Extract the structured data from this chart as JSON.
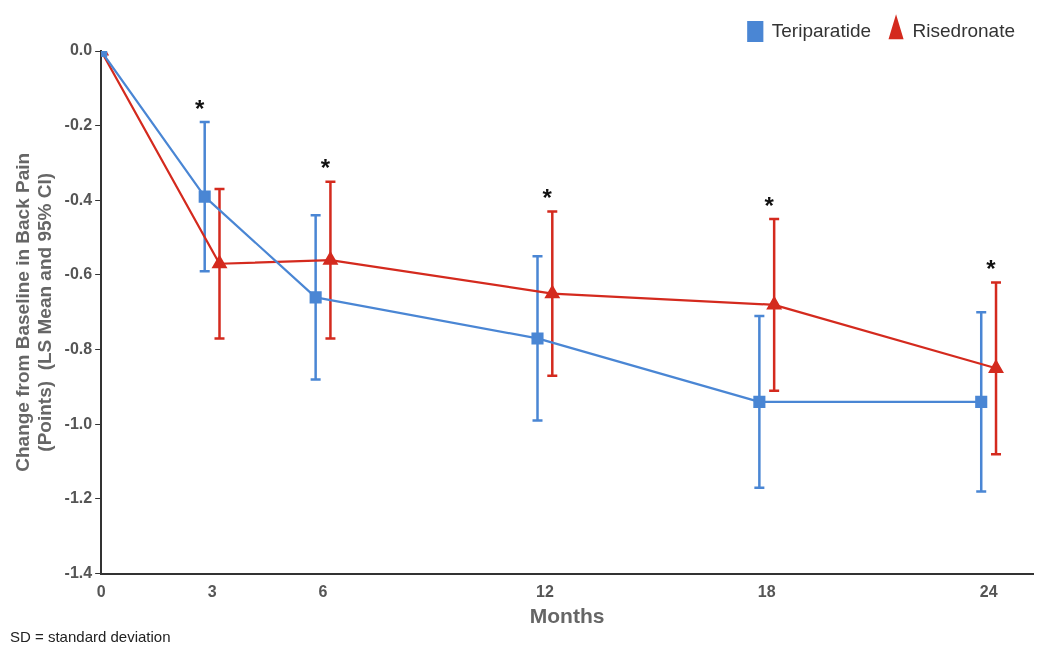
{
  "chart_data": {
    "type": "line",
    "xlabel": "Months",
    "ylabel": "Change from Baseline in Back Pain\n(Points)  (LS Mean and 95% CI)",
    "xlim": [
      0,
      25.2
    ],
    "xticks": [
      0,
      3,
      6,
      12,
      18,
      24
    ],
    "ylim": [
      -1.4,
      0
    ],
    "yticks": [
      {
        "value": 0,
        "label": "0.0"
      },
      -0.2,
      -0.4,
      -0.6,
      -0.8,
      {
        "value": -1,
        "label": "-1.0"
      },
      -1.2,
      -1.4
    ],
    "grid": false,
    "legend": "top right",
    "line_style": "solid",
    "series": [
      {
        "name": "Teriparatide",
        "color": "#4a86d4",
        "marker": "square",
        "x": [
          0,
          2.8,
          5.8,
          11.8,
          17.8,
          23.8
        ],
        "values": [
          0,
          -0.39,
          -0.66,
          -0.77,
          -0.94,
          -0.94
        ],
        "errors": [
          null,
          [
            -0.59,
            -0.19
          ],
          [
            -0.88,
            -0.44
          ],
          [
            -0.99,
            -0.55
          ],
          [
            -1.17,
            -0.71
          ],
          [
            -1.18,
            -0.7
          ]
        ]
      },
      {
        "name": "Risedronate",
        "color": "#d42a1e",
        "marker": "triangle",
        "x": [
          0,
          3.2,
          6.2,
          12.2,
          18.2,
          24.2
        ],
        "values": [
          0,
          -0.57,
          -0.56,
          -0.65,
          -0.68,
          -0.85
        ],
        "errors": [
          null,
          [
            -0.77,
            -0.37
          ],
          [
            -0.77,
            -0.35
          ],
          [
            -0.87,
            -0.43
          ],
          [
            -0.91,
            -0.45
          ],
          [
            -1.08,
            -0.62
          ]
        ]
      }
    ],
    "annotations": [
      {
        "text": "*",
        "x": 2.8,
        "y": -0.19
      },
      {
        "text": "*",
        "x": 6.2,
        "y": -0.35
      },
      {
        "text": "*",
        "x": 12.2,
        "y": -0.43
      },
      {
        "text": "*",
        "x": 18.2,
        "y": -0.45
      },
      {
        "text": "*",
        "x": 24.2,
        "y": -0.62
      },
      "SD = standard deviation"
    ]
  }
}
